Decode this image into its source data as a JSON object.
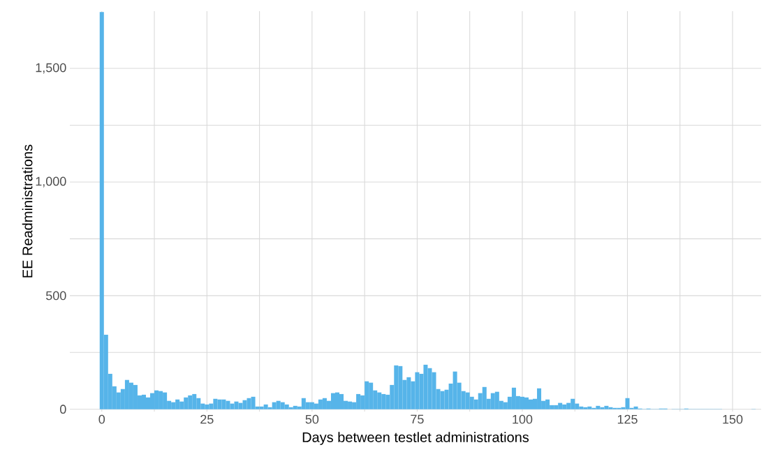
{
  "chart_data": {
    "type": "histogram",
    "xlabel": "Days between testlet administrations",
    "ylabel": "EE Readministrations",
    "color": "#56b4e9",
    "bins": [
      -0.5,
      0.5,
      1.5,
      2.5,
      3.5,
      4.5,
      5.5,
      6.5,
      7.5,
      8.5,
      9.5,
      10.5,
      11.5,
      12.5,
      13.5,
      14.5,
      15.5,
      16.5,
      17.5,
      18.5,
      19.5,
      20.5,
      21.5,
      22.5,
      23.5,
      24.5,
      25.5,
      26.5,
      27.5,
      28.5,
      29.5,
      30.5,
      31.5,
      32.5,
      33.5,
      34.5,
      35.5,
      36.5,
      37.5,
      38.5,
      39.5,
      40.5,
      41.5,
      42.5,
      43.5,
      44.5,
      45.5,
      46.5,
      47.5,
      48.5,
      49.5,
      50.5,
      51.5,
      52.5,
      53.5,
      54.5,
      55.5,
      56.5,
      57.5,
      58.5,
      59.5,
      60.5,
      61.5,
      62.5,
      63.5,
      64.5,
      65.5,
      66.5,
      67.5,
      68.5,
      69.5,
      70.5,
      71.5,
      72.5,
      73.5,
      74.5,
      75.5,
      76.5,
      77.5,
      78.5,
      79.5,
      80.5,
      81.5,
      82.5,
      83.5,
      84.5,
      85.5,
      86.5,
      87.5,
      88.5,
      89.5,
      90.5,
      91.5,
      92.5,
      93.5,
      94.5,
      95.5,
      96.5,
      97.5,
      98.5,
      99.5,
      100.5,
      101.5,
      102.5,
      103.5,
      104.5,
      105.5,
      106.5,
      107.5,
      108.5,
      109.5,
      110.5,
      111.5,
      112.5,
      113.5,
      114.5,
      115.5,
      116.5,
      117.5,
      118.5,
      119.5,
      120.5,
      121.5,
      122.5,
      123.5,
      124.5,
      125.5,
      126.5,
      127.5,
      128.5,
      129.5,
      130.5,
      131.5,
      132.5,
      133.5,
      134.5,
      135.5,
      136.5,
      137.5,
      138.5,
      139.5,
      140.5,
      141.5,
      142.5,
      143.5,
      144.5,
      145.5,
      146.5,
      147.5,
      148.5,
      149.5,
      150.5,
      151.5,
      152.5,
      153.5,
      154.5,
      155.5
    ],
    "values": [
      1748,
      328,
      156,
      101,
      74,
      89,
      129,
      117,
      107,
      61,
      64,
      52,
      71,
      83,
      80,
      74,
      37,
      31,
      43,
      34,
      52,
      61,
      67,
      49,
      25,
      21,
      25,
      46,
      43,
      43,
      37,
      25,
      34,
      28,
      40,
      49,
      55,
      12,
      12,
      21,
      9,
      31,
      37,
      31,
      21,
      9,
      15,
      12,
      49,
      31,
      31,
      25,
      43,
      49,
      37,
      71,
      74,
      67,
      37,
      34,
      31,
      67,
      61,
      123,
      117,
      83,
      74,
      67,
      64,
      107,
      193,
      190,
      129,
      141,
      123,
      163,
      156,
      196,
      181,
      163,
      89,
      80,
      86,
      113,
      166,
      117,
      80,
      74,
      55,
      43,
      71,
      98,
      46,
      71,
      77,
      37,
      31,
      55,
      95,
      58,
      55,
      52,
      43,
      46,
      92,
      37,
      43,
      18,
      18,
      28,
      21,
      28,
      46,
      25,
      12,
      9,
      12,
      6,
      15,
      9,
      15,
      9,
      6,
      6,
      9,
      49,
      6,
      12,
      3,
      1,
      3,
      1,
      1,
      3,
      3,
      0,
      1,
      1,
      1,
      3,
      1,
      1,
      1,
      1,
      1,
      1,
      1,
      1,
      0,
      0,
      0,
      0,
      0,
      0,
      0,
      1
    ],
    "xlim": [
      -7.6,
      156.8
    ],
    "ylim": [
      -10,
      1752
    ],
    "xticks": [
      0,
      25,
      50,
      75,
      100,
      125,
      150
    ],
    "yticks": [
      0,
      500,
      {
        "value": 1000,
        "label": "1,000"
      },
      {
        "value": 1500,
        "label": "1,500"
      }
    ],
    "grid": true
  }
}
